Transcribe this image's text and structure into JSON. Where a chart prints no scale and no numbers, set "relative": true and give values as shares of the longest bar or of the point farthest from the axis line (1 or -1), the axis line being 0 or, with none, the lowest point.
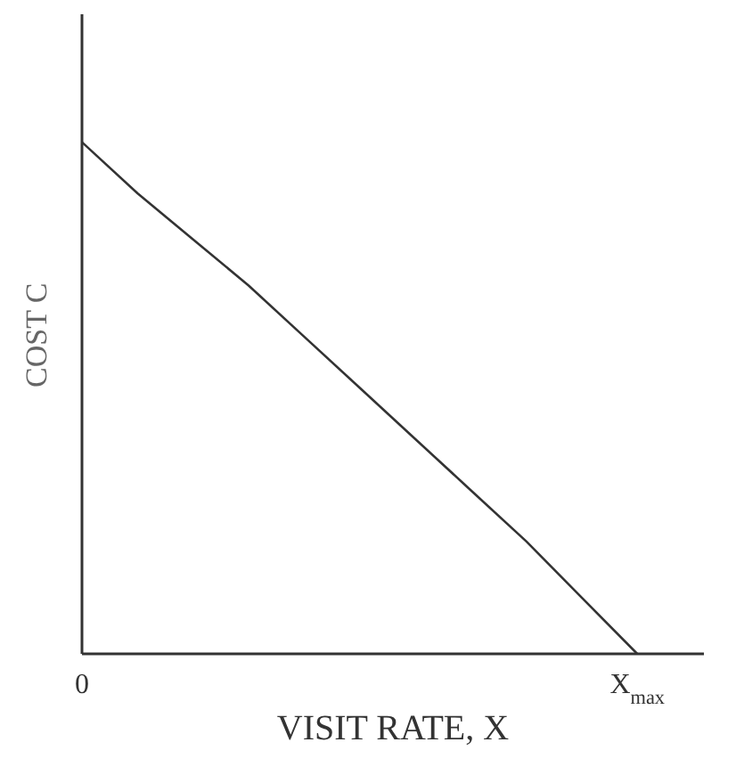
{
  "chart_data": {
    "type": "line",
    "xlabel": "VISIT RATE, X",
    "ylabel": "COST C",
    "relative": true,
    "categories": [
      "0",
      null,
      null,
      null,
      null,
      null,
      null,
      null,
      null,
      null,
      "X$_{max}$"
    ],
    "series": [
      {
        "color": "#333333",
        "values": [
          1,
          0.9,
          0.81,
          0.72,
          0.62,
          0.52,
          0.42,
          0.32,
          0.22,
          0.11,
          0
        ]
      }
    ],
    "grid": false,
    "legend": false,
    "marker": "none",
    "line_style": "solid"
  }
}
